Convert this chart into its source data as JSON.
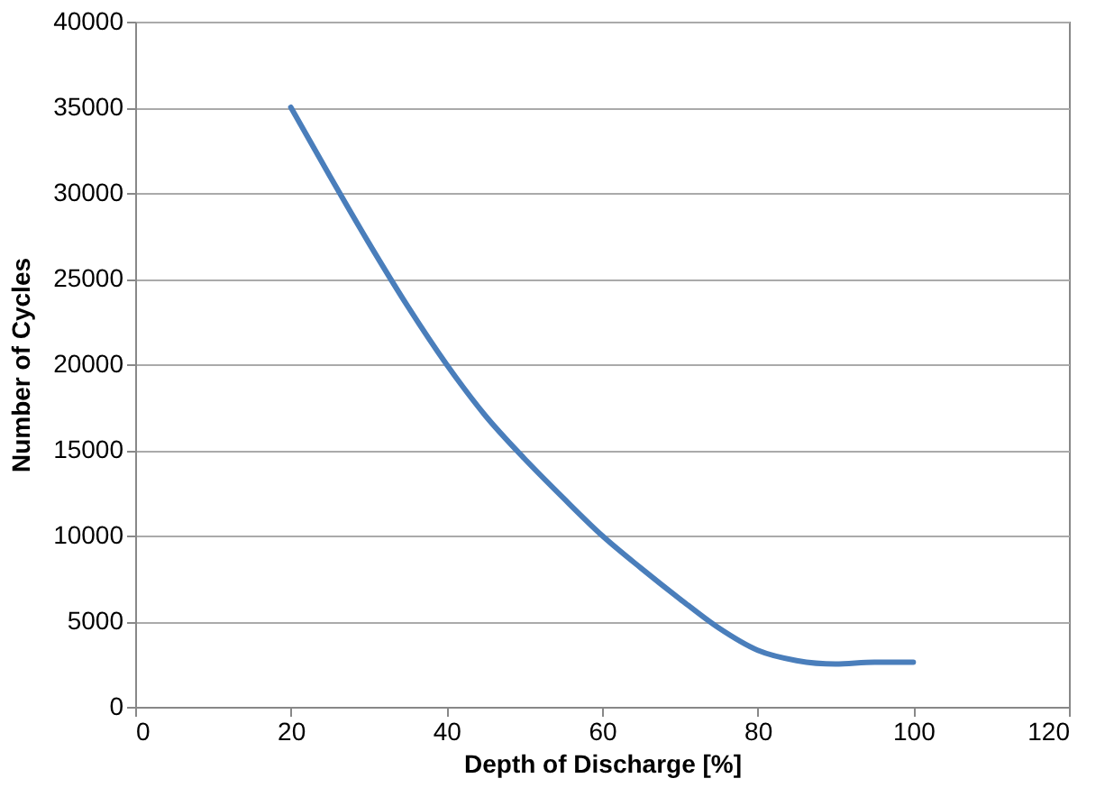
{
  "chart_data": {
    "type": "line",
    "xlabel": "Depth of Discharge [%]",
    "ylabel": "Number of Cycles",
    "x": [
      20,
      25,
      30,
      35,
      40,
      45,
      50,
      55,
      60,
      65,
      70,
      75,
      80,
      85,
      90,
      95,
      100
    ],
    "series": [
      {
        "color": "#4a7ebb",
        "values": [
          35000,
          31000,
          27100,
          23400,
          20000,
          17000,
          14500,
          12200,
          10000,
          8100,
          6300,
          4600,
          3300,
          2700,
          2500,
          2600,
          2600
        ]
      }
    ],
    "xlim": [
      0,
      120
    ],
    "xticks": [
      0,
      20,
      40,
      60,
      80,
      100,
      120
    ],
    "ylim": [
      0,
      40000
    ],
    "yticks": [
      0,
      5000,
      10000,
      15000,
      20000,
      25000,
      30000,
      35000,
      40000
    ],
    "grid": "y",
    "legend": false,
    "marker": "none",
    "line_style": "solid"
  }
}
